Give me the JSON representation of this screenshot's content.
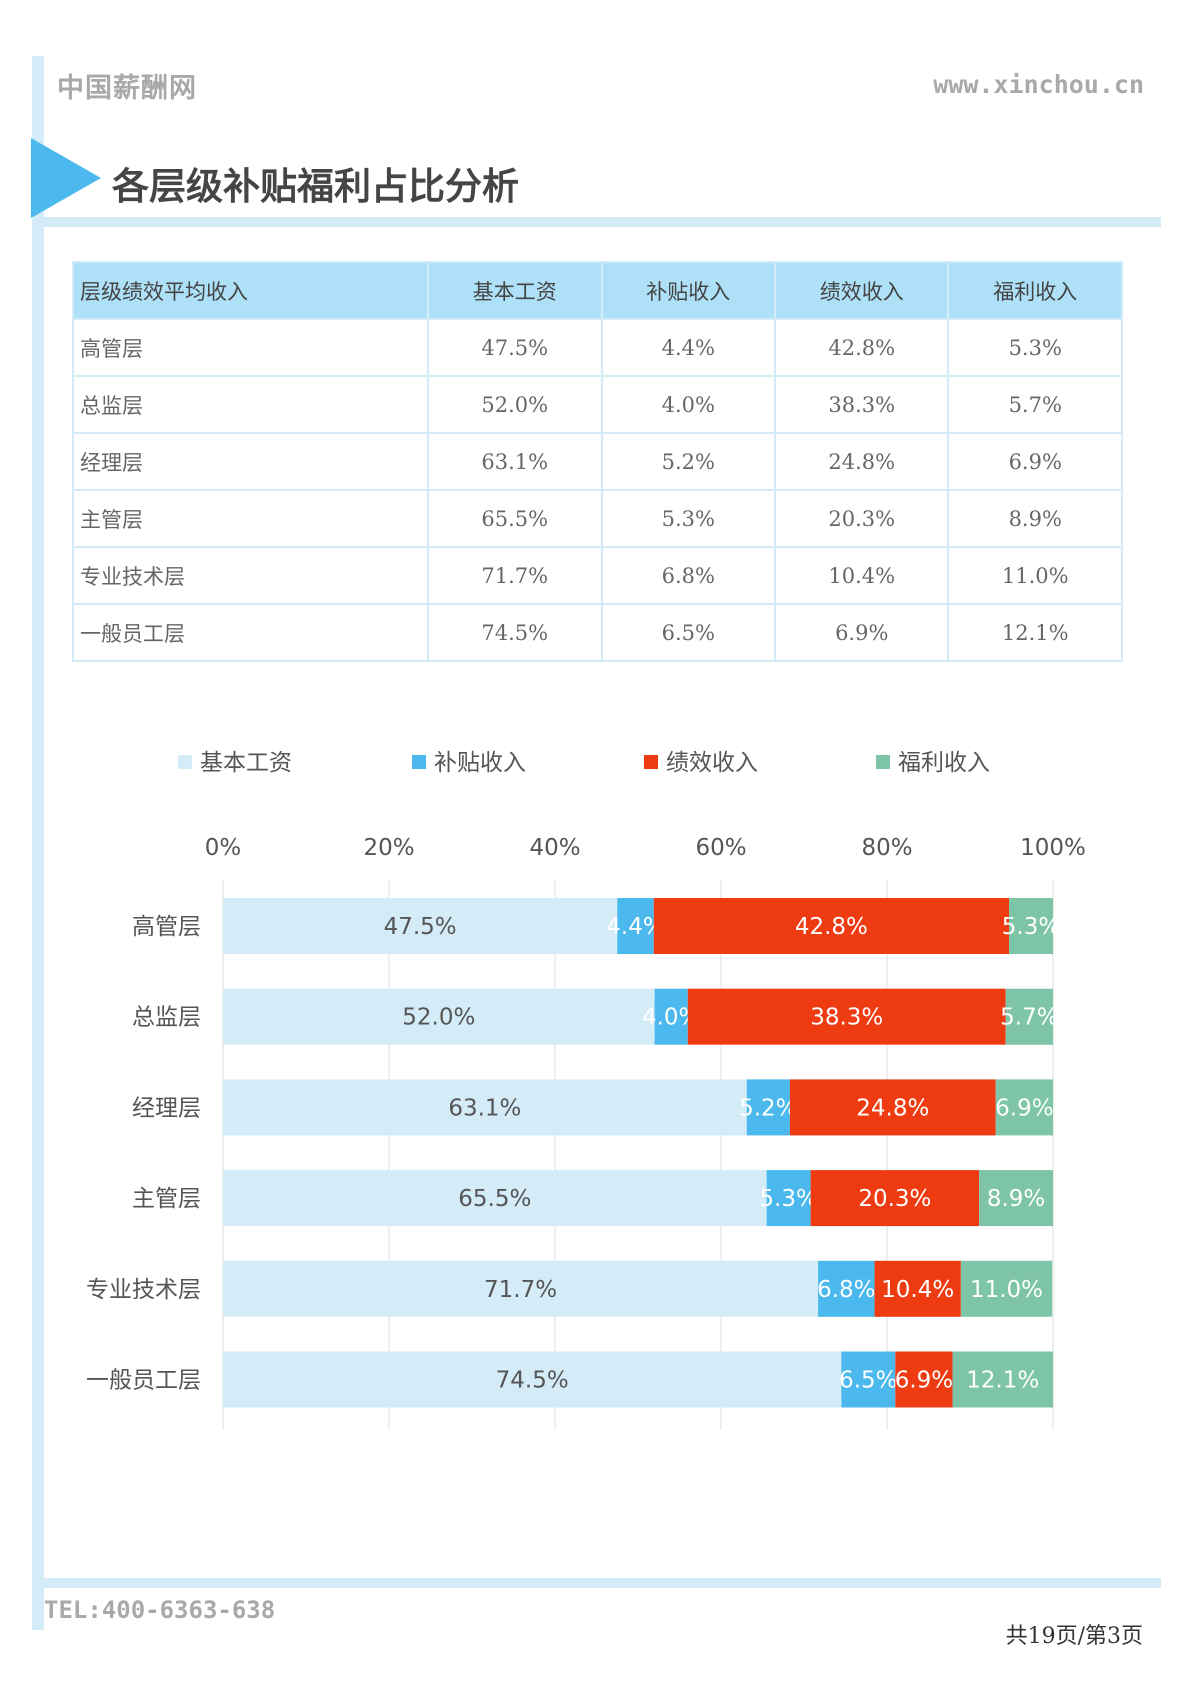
{
  "header": {
    "brand": "中国薪酬网",
    "site": "www.xinchou.cn"
  },
  "page_title": "各层级补贴福利占比分析",
  "table": {
    "headers": [
      "层级绩效平均收入",
      "基本工资",
      "补贴收入",
      "绩效收入",
      "福利收入"
    ],
    "rows": [
      [
        "高管层",
        "47.5%",
        "4.4%",
        "42.8%",
        "5.3%"
      ],
      [
        "总监层",
        "52.0%",
        "4.0%",
        "38.3%",
        "5.7%"
      ],
      [
        "经理层",
        "63.1%",
        "5.2%",
        "24.8%",
        "6.9%"
      ],
      [
        "主管层",
        "65.5%",
        "5.3%",
        "20.3%",
        "8.9%"
      ],
      [
        "专业技术层",
        "71.7%",
        "6.8%",
        "10.4%",
        "11.0%"
      ],
      [
        "一般员工层",
        "74.5%",
        "6.5%",
        "6.9%",
        "12.1%"
      ]
    ]
  },
  "chart_data": {
    "type": "bar",
    "orientation": "horizontal",
    "stacked": true,
    "categories": [
      "高管层",
      "总监层",
      "经理层",
      "主管层",
      "专业技术层",
      "一般员工层"
    ],
    "series": [
      {
        "name": "基本工资",
        "color": "#d4ecf8",
        "label_color": "#555555",
        "values": [
          47.5,
          52.0,
          63.1,
          65.5,
          71.7,
          74.5
        ]
      },
      {
        "name": "补贴收入",
        "color": "#4bb8ee",
        "label_color": "#ffffff",
        "values": [
          4.4,
          4.0,
          5.2,
          5.3,
          6.8,
          6.5
        ]
      },
      {
        "name": "绩效收入",
        "color": "#ef3b12",
        "label_color": "#ffffff",
        "values": [
          42.8,
          38.3,
          24.8,
          20.3,
          10.4,
          6.9
        ]
      },
      {
        "name": "福利收入",
        "color": "#7ec4a6",
        "label_color": "#ffffff",
        "values": [
          5.3,
          5.7,
          6.9,
          8.9,
          11.0,
          12.1
        ]
      }
    ],
    "xlim": [
      0,
      100
    ],
    "xticks": [
      "0%",
      "20%",
      "40%",
      "60%",
      "80%",
      "100%"
    ],
    "x_axis_position": "top",
    "legend_position": "top",
    "grid": true
  },
  "footer": {
    "tel": "TEL:400-6363-638",
    "page": "共19页/第3页"
  }
}
